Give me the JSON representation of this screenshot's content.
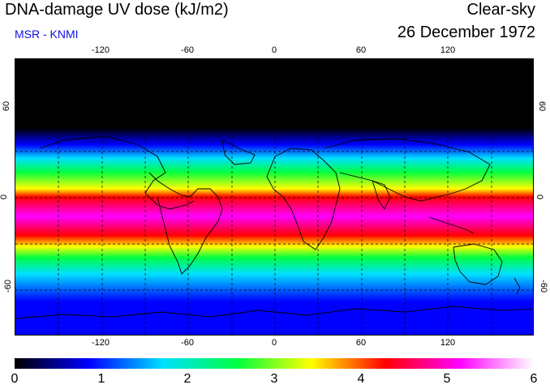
{
  "header": {
    "title": "DNA-damage UV dose (kJ/m2)",
    "subtitle": "MSR - KNMI",
    "condition": "Clear-sky",
    "date": "26 December 1972"
  },
  "map": {
    "lon_ticks": [
      "-120",
      "-60",
      "0",
      "60",
      "120"
    ],
    "lat_ticks": [
      "60",
      "0",
      "-60"
    ],
    "lon_range": [
      -180,
      180
    ],
    "lat_range": [
      -90,
      90
    ]
  },
  "colorbar": {
    "labels": [
      "0",
      "1",
      "2",
      "3",
      "4",
      "5",
      "6"
    ],
    "min": 0,
    "max": 6
  },
  "colors": {
    "low": "#000000",
    "blue": "#0000ff",
    "cyan": "#00e0ff",
    "green": "#00ff40",
    "yellow": "#ffff00",
    "red": "#ff0000",
    "magenta": "#ff00ff",
    "high": "#ffffff",
    "land_outline": "#000000",
    "grid": "#000000"
  }
}
